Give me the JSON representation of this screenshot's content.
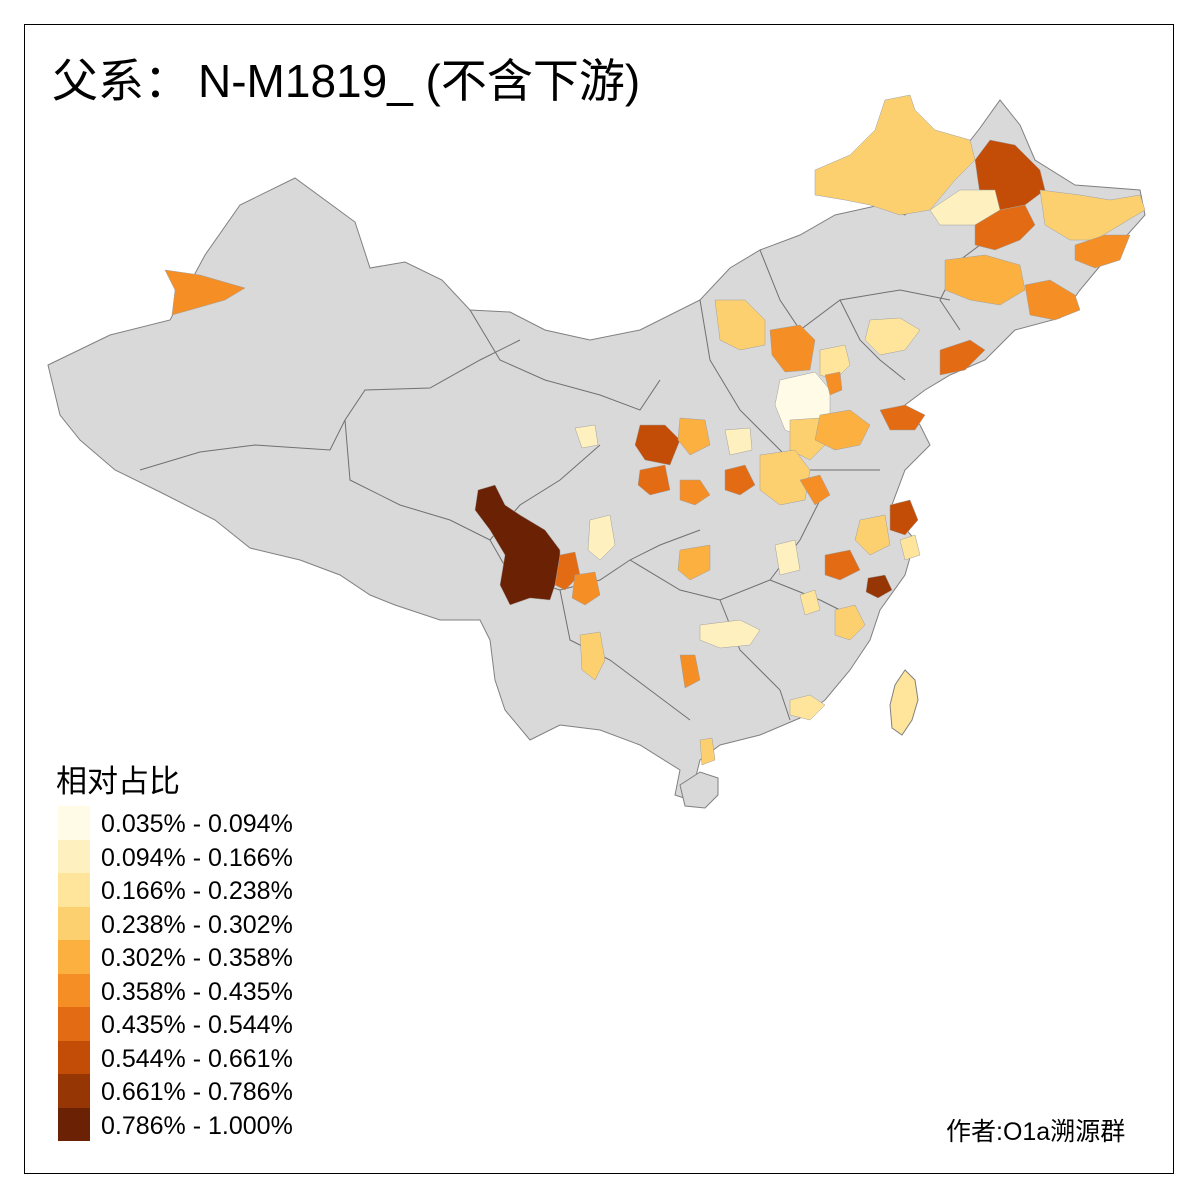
{
  "title": {
    "prefix": "父系：",
    "code": "N-M1819_ (不含下游)"
  },
  "legend": {
    "title": "相对占比",
    "classes": [
      {
        "label": "0.035% - 0.094%",
        "color": "#fffbe6"
      },
      {
        "label": "0.094% - 0.166%",
        "color": "#fff0c0"
      },
      {
        "label": "0.166% - 0.238%",
        "color": "#fee59b"
      },
      {
        "label": "0.238% - 0.302%",
        "color": "#fdd06f"
      },
      {
        "label": "0.302% - 0.358%",
        "color": "#fcb040"
      },
      {
        "label": "0.358% - 0.435%",
        "color": "#f58e25"
      },
      {
        "label": "0.435% - 0.544%",
        "color": "#e36b13"
      },
      {
        "label": "0.544% - 0.661%",
        "color": "#c34d07"
      },
      {
        "label": "0.661% - 0.786%",
        "color": "#963605"
      },
      {
        "label": "0.786% - 1.000%",
        "color": "#6b2204"
      }
    ]
  },
  "credit": "作者:O1a溯源群",
  "map_colors": {
    "base_fill": "#d9d9d9",
    "border": "#808080"
  }
}
